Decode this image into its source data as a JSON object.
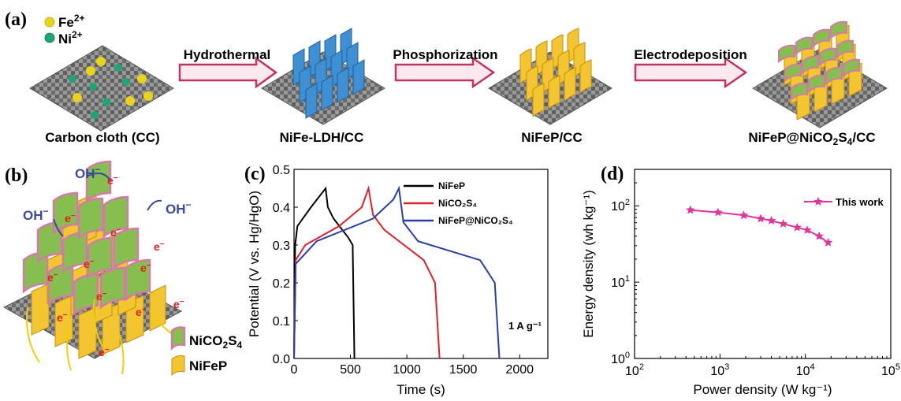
{
  "colors": {
    "cloth": "#8a8a8a",
    "ldh_blue": "#3f8fd3",
    "nifep_yellow": "#f2c531",
    "nico2s4_green": "#86bf4f",
    "nico2s4_border": "#d47aa8",
    "arrow": "#c0345e",
    "fe_dot": "#e9d41a",
    "ni_dot": "#1ea575",
    "oh_blue": "#3a4a9c",
    "electron_red": "#e0201a",
    "flow_yellow": "#f0d000",
    "nifep_curve": "#000000",
    "nico2s4_curve": "#e0202a",
    "composite_curve": "#2a3ea8",
    "this_work": "#e0359a"
  },
  "panel_a": {
    "label": "(a)",
    "legend": [
      {
        "ion": "Fe",
        "charge": "2+",
        "icon": "yellow-dot-icon"
      },
      {
        "ion": "Ni",
        "charge": "2+",
        "icon": "green-dot-icon"
      }
    ],
    "steps": [
      "Hydrothermal",
      "Phosphorization",
      "Electrodeposition"
    ],
    "captions": {
      "cc": "Carbon cloth (CC)",
      "ldh": "NiFe-LDH/CC",
      "nifep": "NiFeP/CC",
      "composite_pre": "NiFeP@NiCO",
      "composite_sub1": "2",
      "composite_mid": "S",
      "composite_sub2": "4",
      "composite_post": "/CC"
    }
  },
  "panel_b": {
    "label": "(b)",
    "oh": "OH",
    "minus": "−",
    "electron": "e",
    "legend": [
      {
        "pre": "NiCO",
        "sub1": "2",
        "mid": "S",
        "sub2": "4",
        "swatch": "green-sheet-icon"
      },
      {
        "pre": "NiFeP",
        "sub1": "",
        "mid": "",
        "sub2": "",
        "swatch": "yellow-sheet-icon"
      }
    ]
  },
  "panel_c": {
    "label": "(c)",
    "annotation": "1 A g⁻¹"
  },
  "panel_d": {
    "label": "(d)"
  },
  "chart_data": [
    {
      "type": "line",
      "xlabel": "Time (s)",
      "ylabel": "Potential (V vs. Hg/HgO)",
      "xlim": [
        0,
        2250
      ],
      "ylim": [
        0.0,
        0.5
      ],
      "xticks": [
        "0",
        "500",
        "1000",
        "1500",
        "2000"
      ],
      "yticks": [
        "0.0",
        "0.1",
        "0.2",
        "0.3",
        "0.4",
        "0.5"
      ],
      "legend_position": "top-right",
      "series": [
        {
          "name": "NiFeP",
          "points": [
            [
              0,
              0.0
            ],
            [
              10,
              0.3
            ],
            [
              30,
              0.35
            ],
            [
              150,
              0.4
            ],
            [
              280,
              0.45
            ],
            [
              300,
              0.4
            ],
            [
              350,
              0.37
            ],
            [
              480,
              0.32
            ],
            [
              520,
              0.3
            ],
            [
              535,
              0.0
            ]
          ]
        },
        {
          "name": "NiCO₂S₄",
          "points": [
            [
              0,
              0.0
            ],
            [
              15,
              0.26
            ],
            [
              100,
              0.3
            ],
            [
              400,
              0.35
            ],
            [
              600,
              0.4
            ],
            [
              660,
              0.45
            ],
            [
              700,
              0.38
            ],
            [
              800,
              0.34
            ],
            [
              1150,
              0.26
            ],
            [
              1250,
              0.2
            ],
            [
              1290,
              0.0
            ]
          ]
        },
        {
          "name": "NiFeP@NiCO₂S₄",
          "points": [
            [
              0,
              0.0
            ],
            [
              15,
              0.25
            ],
            [
              200,
              0.31
            ],
            [
              700,
              0.37
            ],
            [
              880,
              0.42
            ],
            [
              930,
              0.45
            ],
            [
              970,
              0.36
            ],
            [
              1100,
              0.31
            ],
            [
              1650,
              0.26
            ],
            [
              1780,
              0.2
            ],
            [
              1820,
              0.0
            ]
          ]
        }
      ]
    },
    {
      "type": "line",
      "xlabel": "Power density (W kg⁻¹)",
      "ylabel": "Energy density (wh kg⁻¹)",
      "xscale": "log",
      "yscale": "log",
      "xlim": [
        100,
        100000
      ],
      "ylim": [
        1,
        300
      ],
      "xticks": [
        {
          "base": "10",
          "exp": "2"
        },
        {
          "base": "10",
          "exp": "3"
        },
        {
          "base": "10",
          "exp": "4"
        },
        {
          "base": "10",
          "exp": "5"
        }
      ],
      "yticks": [
        {
          "base": "10",
          "exp": "0"
        },
        {
          "base": "10",
          "exp": "1"
        },
        {
          "base": "10",
          "exp": "2"
        }
      ],
      "legend_position": "top-right",
      "series": [
        {
          "name": "This work",
          "points": [
            [
              450,
              88
            ],
            [
              950,
              82
            ],
            [
              1900,
              75
            ],
            [
              3000,
              68
            ],
            [
              4000,
              64
            ],
            [
              5500,
              58
            ],
            [
              8000,
              52
            ],
            [
              10500,
              48
            ],
            [
              14500,
              40
            ],
            [
              18500,
              33
            ]
          ]
        }
      ]
    }
  ]
}
